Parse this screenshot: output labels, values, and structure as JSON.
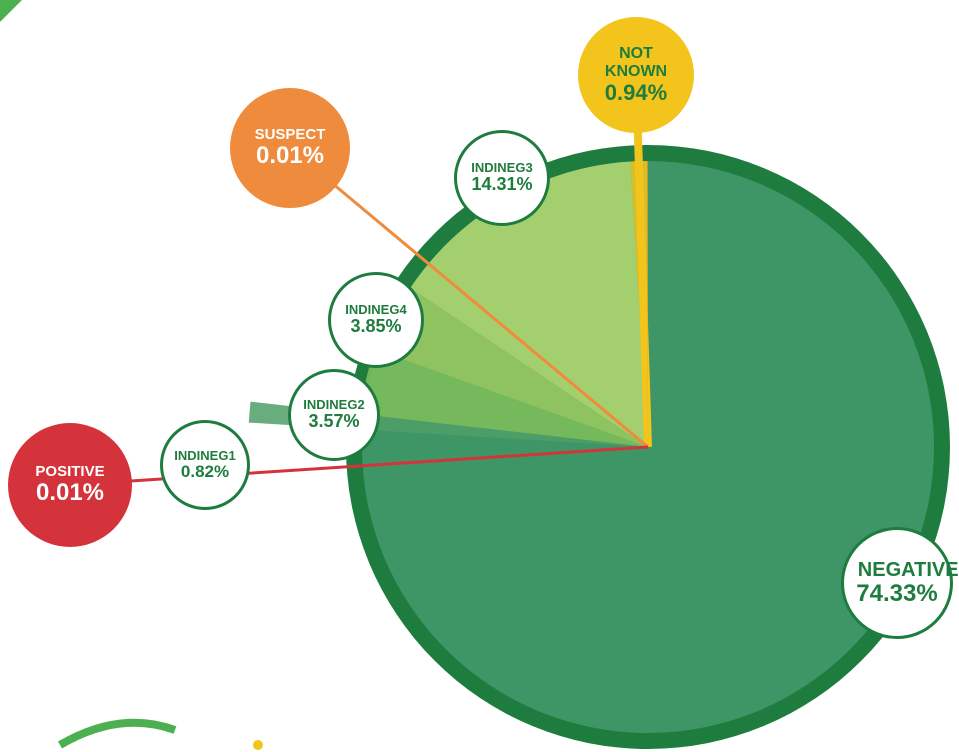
{
  "chart_data": {
    "type": "pie",
    "categories": [
      "NEGATIVE",
      "INDINEG1",
      "INDINEG2",
      "INDINEG4",
      "INDINEG3",
      "NOT KNOWN",
      "SUSPECT",
      "POSITIVE"
    ],
    "values": [
      74.33,
      0.82,
      3.57,
      3.85,
      14.31,
      0.94,
      0.01,
      0.01
    ],
    "value_labels": [
      "74.33%",
      "0.82%",
      "3.57%",
      "3.85%",
      "14.31%",
      "0.94%",
      "0.01%",
      "0.01%"
    ],
    "colors": [
      "#3e9566",
      "#4f9f68",
      "#7fc05a",
      "#9ccb5f",
      "#b6d971",
      "#f3c51c",
      "#ef8b3c",
      "#d5333b"
    ]
  }
}
